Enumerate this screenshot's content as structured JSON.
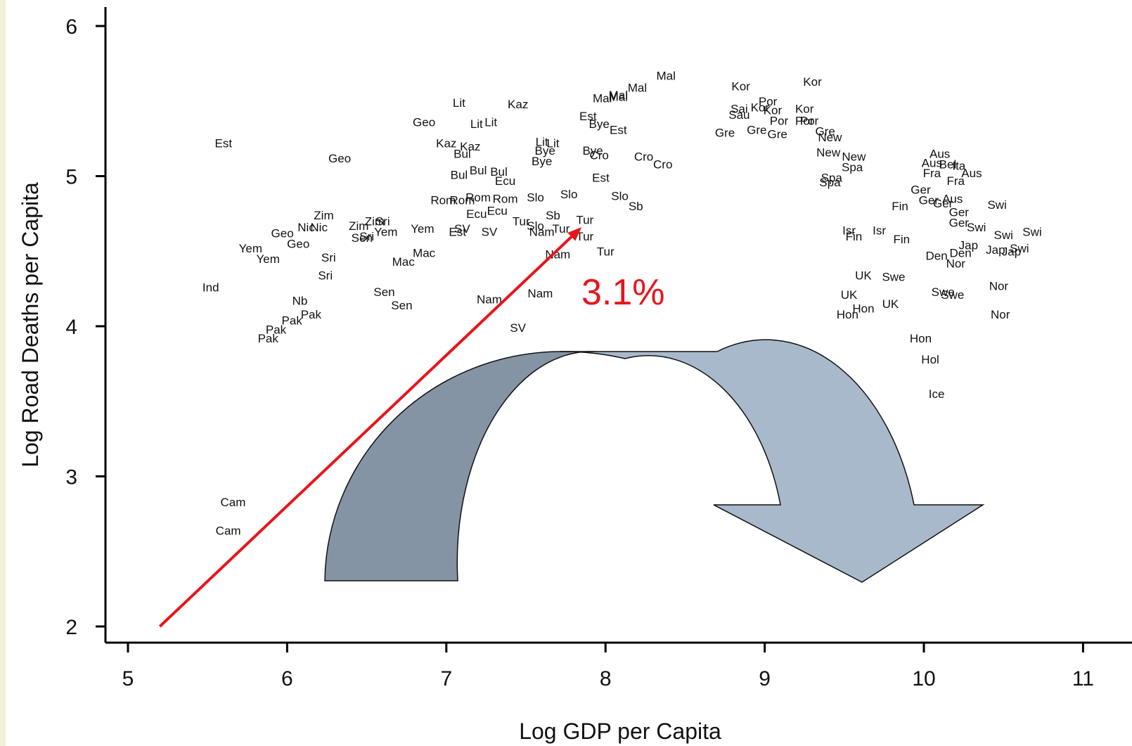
{
  "chart_data": {
    "type": "scatter",
    "xlabel": "Log GDP per Capita",
    "ylabel": "Log Road Deaths per Capita",
    "xlim": [
      5,
      11
    ],
    "ylim": [
      2,
      6
    ],
    "xticks": [
      "5",
      "6",
      "7",
      "8",
      "9",
      "10",
      "11"
    ],
    "yticks": [
      "2",
      "3",
      "4",
      "5",
      "6"
    ],
    "points": [
      {
        "label": "Est",
        "x": 5.6,
        "y": 5.22
      },
      {
        "label": "Geo",
        "x": 6.33,
        "y": 5.12
      },
      {
        "label": "Zim",
        "x": 6.23,
        "y": 4.74
      },
      {
        "label": "Zim",
        "x": 6.45,
        "y": 4.67
      },
      {
        "label": "Zim",
        "x": 6.55,
        "y": 4.7
      },
      {
        "label": "Sri",
        "x": 6.6,
        "y": 4.7
      },
      {
        "label": "Geo",
        "x": 5.97,
        "y": 4.62
      },
      {
        "label": "Nic",
        "x": 6.12,
        "y": 4.66
      },
      {
        "label": "Nic",
        "x": 6.2,
        "y": 4.66
      },
      {
        "label": "Geo",
        "x": 6.07,
        "y": 4.55
      },
      {
        "label": "Sen",
        "x": 6.47,
        "y": 4.59
      },
      {
        "label": "Sri",
        "x": 6.5,
        "y": 4.6
      },
      {
        "label": "Yem",
        "x": 6.62,
        "y": 4.63
      },
      {
        "label": "Yem",
        "x": 6.85,
        "y": 4.65
      },
      {
        "label": "Yem",
        "x": 5.77,
        "y": 4.52
      },
      {
        "label": "Yem",
        "x": 5.88,
        "y": 4.45
      },
      {
        "label": "Sri",
        "x": 6.26,
        "y": 4.46
      },
      {
        "label": "Sri",
        "x": 6.24,
        "y": 4.34
      },
      {
        "label": "Mac",
        "x": 6.73,
        "y": 4.43
      },
      {
        "label": "Mac",
        "x": 6.86,
        "y": 4.49
      },
      {
        "label": "Ind",
        "x": 5.52,
        "y": 4.26
      },
      {
        "label": "Nb",
        "x": 6.08,
        "y": 4.17
      },
      {
        "label": "Pak",
        "x": 6.15,
        "y": 4.08
      },
      {
        "label": "Pak",
        "x": 6.03,
        "y": 4.04
      },
      {
        "label": "Pak",
        "x": 5.93,
        "y": 3.98
      },
      {
        "label": "Pak",
        "x": 5.88,
        "y": 3.92
      },
      {
        "label": "Sen",
        "x": 6.61,
        "y": 4.23
      },
      {
        "label": "Sen",
        "x": 6.72,
        "y": 4.14
      },
      {
        "label": "Cam",
        "x": 5.66,
        "y": 2.83
      },
      {
        "label": "Cam",
        "x": 5.63,
        "y": 2.64
      },
      {
        "label": "Lit",
        "x": 7.08,
        "y": 5.49
      },
      {
        "label": "Kaz",
        "x": 7.45,
        "y": 5.48
      },
      {
        "label": "Geo",
        "x": 6.86,
        "y": 5.36
      },
      {
        "label": "Lit",
        "x": 7.19,
        "y": 5.35
      },
      {
        "label": "Lit",
        "x": 7.28,
        "y": 5.36
      },
      {
        "label": "Kaz",
        "x": 7.0,
        "y": 5.22
      },
      {
        "label": "Kaz",
        "x": 7.15,
        "y": 5.2
      },
      {
        "label": "Bul",
        "x": 7.1,
        "y": 5.15
      },
      {
        "label": "Lit",
        "x": 7.6,
        "y": 5.23
      },
      {
        "label": "Lit",
        "x": 7.67,
        "y": 5.22
      },
      {
        "label": "Bye",
        "x": 7.62,
        "y": 5.17
      },
      {
        "label": "Bye",
        "x": 7.6,
        "y": 5.1
      },
      {
        "label": "Bul",
        "x": 7.08,
        "y": 5.01
      },
      {
        "label": "Bul",
        "x": 7.2,
        "y": 5.04
      },
      {
        "label": "Bul",
        "x": 7.33,
        "y": 5.03
      },
      {
        "label": "Ecu",
        "x": 7.37,
        "y": 4.97
      },
      {
        "label": "Rom",
        "x": 6.98,
        "y": 4.84
      },
      {
        "label": "Rom",
        "x": 7.1,
        "y": 4.84
      },
      {
        "label": "Rom",
        "x": 7.2,
        "y": 4.86
      },
      {
        "label": "Rom",
        "x": 7.37,
        "y": 4.85
      },
      {
        "label": "Slo",
        "x": 7.56,
        "y": 4.86
      },
      {
        "label": "Slo",
        "x": 7.77,
        "y": 4.88
      },
      {
        "label": "Ecu",
        "x": 7.19,
        "y": 4.75
      },
      {
        "label": "Ecu",
        "x": 7.32,
        "y": 4.77
      },
      {
        "label": "Est",
        "x": 7.07,
        "y": 4.63
      },
      {
        "label": "SV",
        "x": 7.1,
        "y": 4.65
      },
      {
        "label": "SV",
        "x": 7.27,
        "y": 4.63
      },
      {
        "label": "Tur",
        "x": 7.47,
        "y": 4.7
      },
      {
        "label": "Slo",
        "x": 7.56,
        "y": 4.67
      },
      {
        "label": "Sb",
        "x": 7.67,
        "y": 4.74
      },
      {
        "label": "Nam",
        "x": 7.6,
        "y": 4.63
      },
      {
        "label": "Tur",
        "x": 7.72,
        "y": 4.65
      },
      {
        "label": "Tur",
        "x": 7.87,
        "y": 4.71
      },
      {
        "label": "Tur",
        "x": 7.87,
        "y": 4.6
      },
      {
        "label": "Tur",
        "x": 8.0,
        "y": 4.5
      },
      {
        "label": "Nam",
        "x": 7.7,
        "y": 4.48
      },
      {
        "label": "Nam",
        "x": 7.27,
        "y": 4.18
      },
      {
        "label": "Nam",
        "x": 7.59,
        "y": 4.22
      },
      {
        "label": "SV",
        "x": 7.45,
        "y": 3.99
      },
      {
        "label": "Mal",
        "x": 8.38,
        "y": 5.67
      },
      {
        "label": "Mal",
        "x": 8.2,
        "y": 5.59
      },
      {
        "label": "Mal",
        "x": 8.08,
        "y": 5.53
      },
      {
        "label": "Mal",
        "x": 7.98,
        "y": 5.52
      },
      {
        "label": "Mal",
        "x": 8.08,
        "y": 5.54
      },
      {
        "label": "Est",
        "x": 7.89,
        "y": 5.4
      },
      {
        "label": "Bye",
        "x": 7.96,
        "y": 5.35
      },
      {
        "label": "Est",
        "x": 8.08,
        "y": 5.31
      },
      {
        "label": "Bye",
        "x": 7.92,
        "y": 5.17
      },
      {
        "label": "Cro",
        "x": 7.96,
        "y": 5.14
      },
      {
        "label": "Cro",
        "x": 8.24,
        "y": 5.13
      },
      {
        "label": "Cro",
        "x": 8.36,
        "y": 5.08
      },
      {
        "label": "Est",
        "x": 7.97,
        "y": 4.99
      },
      {
        "label": "Slo",
        "x": 8.09,
        "y": 4.87
      },
      {
        "label": "Sb",
        "x": 8.19,
        "y": 4.8
      },
      {
        "label": "Kor",
        "x": 8.85,
        "y": 5.6
      },
      {
        "label": "Kor",
        "x": 9.3,
        "y": 5.63
      },
      {
        "label": "Sai",
        "x": 8.84,
        "y": 5.45
      },
      {
        "label": "Kor",
        "x": 8.97,
        "y": 5.46
      },
      {
        "label": "Por",
        "x": 9.02,
        "y": 5.5
      },
      {
        "label": "Kor",
        "x": 9.05,
        "y": 5.44
      },
      {
        "label": "Kor",
        "x": 9.25,
        "y": 5.45
      },
      {
        "label": "Sau",
        "x": 8.84,
        "y": 5.41
      },
      {
        "label": "Por",
        "x": 9.09,
        "y": 5.37
      },
      {
        "label": "Por",
        "x": 9.25,
        "y": 5.37
      },
      {
        "label": "Por",
        "x": 9.28,
        "y": 5.37
      },
      {
        "label": "Gre",
        "x": 8.75,
        "y": 5.29
      },
      {
        "label": "Gre",
        "x": 8.95,
        "y": 5.31
      },
      {
        "label": "Gre",
        "x": 9.08,
        "y": 5.28
      },
      {
        "label": "Gre",
        "x": 9.38,
        "y": 5.3
      },
      {
        "label": "New",
        "x": 9.41,
        "y": 5.26
      },
      {
        "label": "New",
        "x": 9.4,
        "y": 5.16
      },
      {
        "label": "New",
        "x": 9.56,
        "y": 5.13
      },
      {
        "label": "Spa",
        "x": 9.55,
        "y": 5.06
      },
      {
        "label": "Spa",
        "x": 9.42,
        "y": 4.99
      },
      {
        "label": "Spa",
        "x": 9.41,
        "y": 4.96
      },
      {
        "label": "Isr",
        "x": 9.53,
        "y": 4.64
      },
      {
        "label": "Isr",
        "x": 9.72,
        "y": 4.64
      },
      {
        "label": "Fin",
        "x": 9.56,
        "y": 4.6
      },
      {
        "label": "Fin",
        "x": 9.86,
        "y": 4.58
      },
      {
        "label": "Fin",
        "x": 9.85,
        "y": 4.8
      },
      {
        "label": "UK",
        "x": 9.62,
        "y": 4.34
      },
      {
        "label": "Swe",
        "x": 9.81,
        "y": 4.33
      },
      {
        "label": "UK",
        "x": 9.53,
        "y": 4.21
      },
      {
        "label": "UK",
        "x": 9.79,
        "y": 4.15
      },
      {
        "label": "Hon",
        "x": 9.62,
        "y": 4.12
      },
      {
        "label": "Hon",
        "x": 9.52,
        "y": 4.08
      },
      {
        "label": "Aus",
        "x": 10.1,
        "y": 5.15
      },
      {
        "label": "Aus",
        "x": 10.05,
        "y": 5.09
      },
      {
        "label": "Bel",
        "x": 10.15,
        "y": 5.08
      },
      {
        "label": "Ita",
        "x": 10.22,
        "y": 5.07
      },
      {
        "label": "Fra",
        "x": 10.05,
        "y": 5.02
      },
      {
        "label": "Aus",
        "x": 10.3,
        "y": 5.02
      },
      {
        "label": "Fra",
        "x": 10.2,
        "y": 4.97
      },
      {
        "label": "Ger",
        "x": 9.98,
        "y": 4.91
      },
      {
        "label": "Aus",
        "x": 10.18,
        "y": 4.85
      },
      {
        "label": "Ger",
        "x": 10.03,
        "y": 4.84
      },
      {
        "label": "Ger",
        "x": 10.12,
        "y": 4.82
      },
      {
        "label": "Ger",
        "x": 10.22,
        "y": 4.76
      },
      {
        "label": "Swi",
        "x": 10.46,
        "y": 4.81
      },
      {
        "label": "Ger",
        "x": 10.22,
        "y": 4.69
      },
      {
        "label": "Swi",
        "x": 10.33,
        "y": 4.66
      },
      {
        "label": "Swi",
        "x": 10.5,
        "y": 4.61
      },
      {
        "label": "Swi",
        "x": 10.68,
        "y": 4.63
      },
      {
        "label": "Jap",
        "x": 10.28,
        "y": 4.54
      },
      {
        "label": "Jap",
        "x": 10.45,
        "y": 4.51
      },
      {
        "label": "Jap",
        "x": 10.55,
        "y": 4.5
      },
      {
        "label": "Swi",
        "x": 10.6,
        "y": 4.52
      },
      {
        "label": "Den",
        "x": 10.08,
        "y": 4.47
      },
      {
        "label": "Den",
        "x": 10.23,
        "y": 4.49
      },
      {
        "label": "Nor",
        "x": 10.2,
        "y": 4.42
      },
      {
        "label": "Nor",
        "x": 10.47,
        "y": 4.27
      },
      {
        "label": "Nor",
        "x": 10.48,
        "y": 4.08
      },
      {
        "label": "Swe",
        "x": 10.12,
        "y": 4.23
      },
      {
        "label": "Swe",
        "x": 10.18,
        "y": 4.21
      },
      {
        "label": "Hon",
        "x": 9.98,
        "y": 3.92
      },
      {
        "label": "Hol",
        "x": 10.04,
        "y": 3.78
      },
      {
        "label": "Ice",
        "x": 10.08,
        "y": 3.55
      }
    ],
    "annotation": {
      "text": "3.1%",
      "arrow_from": [
        5.2,
        2.0
      ],
      "arrow_to": [
        7.85,
        4.66
      ]
    },
    "grid": false,
    "legend": "none"
  },
  "colors": {
    "arrow_line": "#e8141b",
    "curve_dark": "#8494a4",
    "curve_light": "#a9b9cc",
    "axis": "#000000"
  }
}
